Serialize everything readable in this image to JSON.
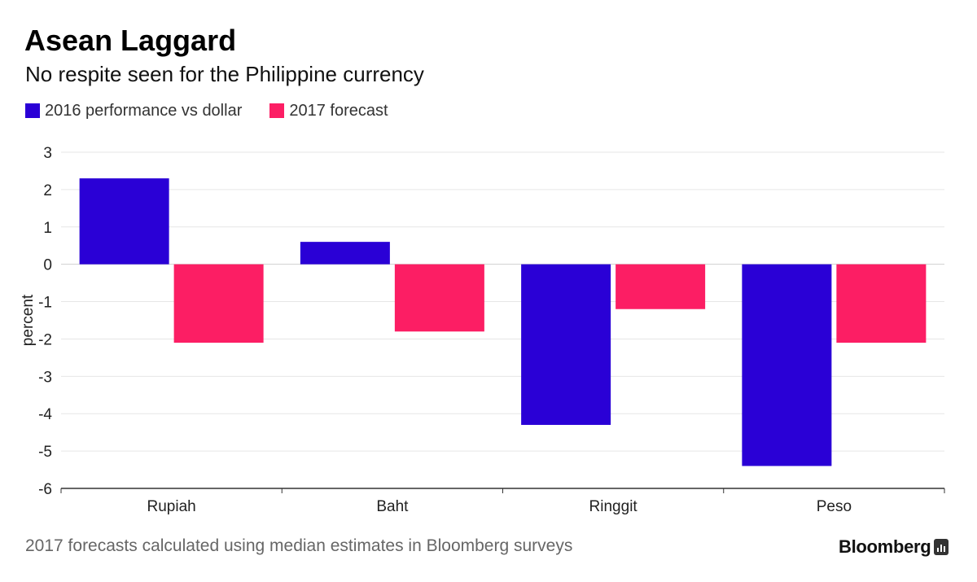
{
  "header": {
    "title": "Asean Laggard",
    "subtitle": "No respite seen for the Philippine currency"
  },
  "footer": {
    "note": "2017 forecasts calculated using median estimates in Bloomberg surveys",
    "brand": "Bloomberg"
  },
  "colors": {
    "series_2016": "#2a00d6",
    "series_2017": "#fc1e64",
    "grid": "#e6e6e6",
    "axis": "#333333"
  },
  "chart_data": {
    "type": "bar",
    "categories": [
      "Rupiah",
      "Baht",
      "Ringgit",
      "Peso"
    ],
    "series": [
      {
        "name": "2016 performance vs dollar",
        "values": [
          2.3,
          0.6,
          -4.3,
          -5.4
        ]
      },
      {
        "name": "2017 forecast",
        "values": [
          -2.1,
          -1.8,
          -1.2,
          -2.1
        ]
      }
    ],
    "ylabel": "percent",
    "ylim": [
      -6,
      3
    ],
    "yticks": [
      3,
      2,
      1,
      0,
      -1,
      -2,
      -3,
      -4,
      -5,
      -6
    ],
    "grid": true,
    "legend": "top-left"
  }
}
